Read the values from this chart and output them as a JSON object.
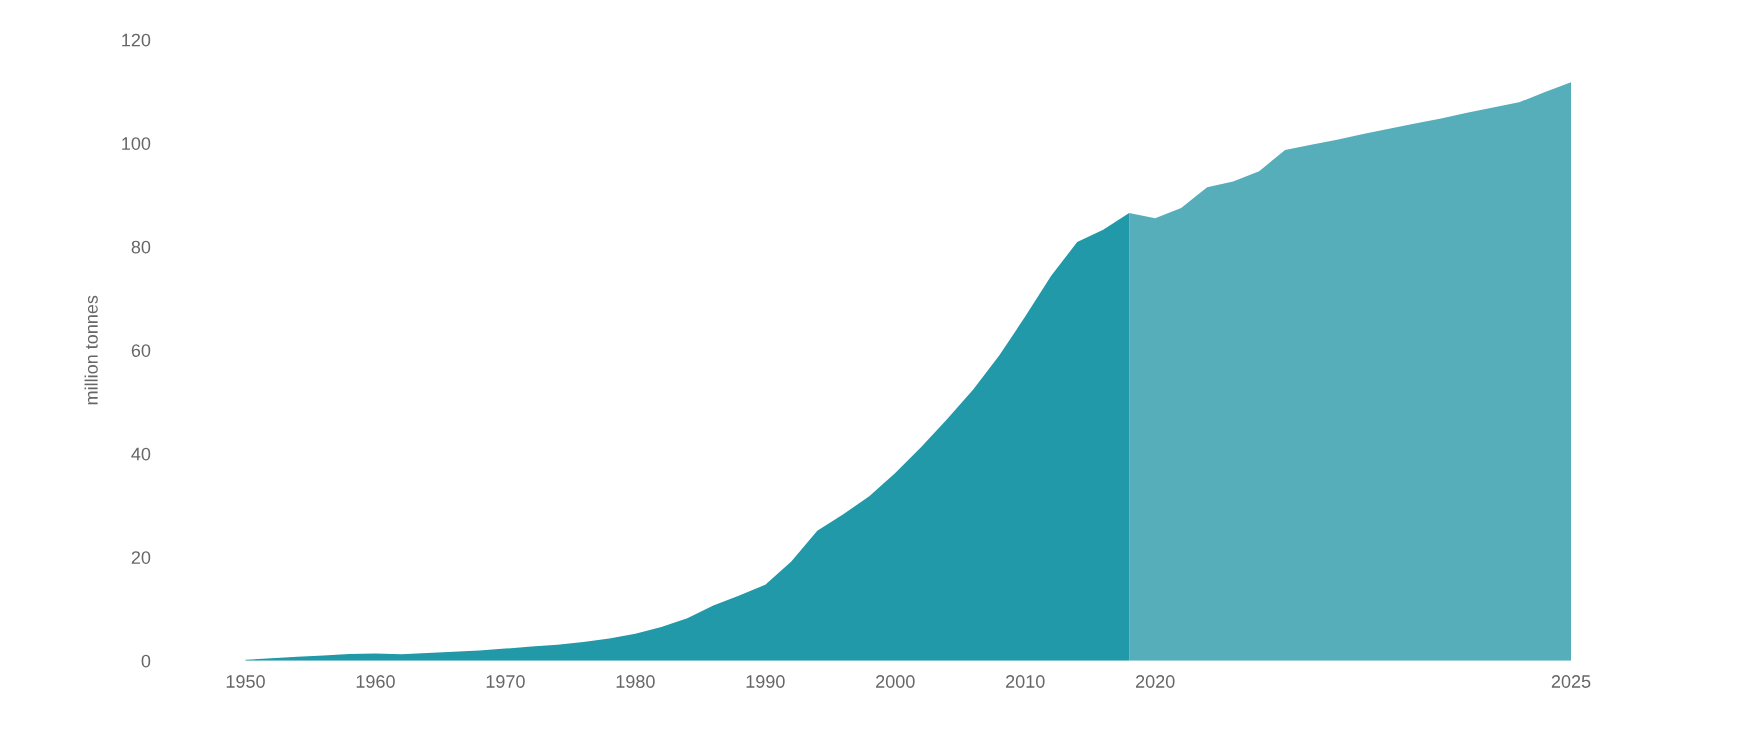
{
  "chart_data": {
    "type": "area",
    "ylabel": "million tonnes",
    "ylim": [
      0,
      120
    ],
    "yticks": [
      0,
      20,
      40,
      60,
      80,
      100,
      120
    ],
    "categories": [
      "1950",
      null,
      null,
      null,
      null,
      "1960",
      null,
      null,
      null,
      null,
      "1970",
      null,
      null,
      null,
      null,
      "1980",
      null,
      null,
      null,
      null,
      "1990",
      null,
      null,
      null,
      null,
      "2000",
      null,
      null,
      null,
      null,
      "2010",
      null,
      null,
      null,
      null,
      "2020",
      null,
      null,
      null,
      null,
      null,
      null,
      null,
      null,
      null,
      null,
      null,
      null,
      null,
      null,
      null,
      "2025"
    ],
    "series": [
      {
        "color": "#2199a8",
        "values": [
          0.2,
          0.47,
          0.75,
          1.0,
          1.3,
          1.4,
          1.25,
          1.5,
          1.75,
          2.0,
          2.35,
          2.75,
          3.1,
          3.6,
          4.3,
          5.2,
          6.5,
          8.2,
          10.7,
          12.6,
          14.7,
          19.2,
          25.1,
          28.3,
          31.8,
          36.3,
          41.3,
          46.7,
          52.4,
          59.0,
          66.5,
          74.4,
          80.9,
          83.3,
          86.5,
          null,
          null,
          null,
          null,
          null,
          null,
          null,
          null,
          null,
          null,
          null,
          null,
          null,
          null,
          null,
          null,
          null
        ]
      },
      {
        "color": "#55aeba",
        "values": [
          null,
          null,
          null,
          null,
          null,
          null,
          null,
          null,
          null,
          null,
          null,
          null,
          null,
          null,
          null,
          null,
          null,
          null,
          null,
          null,
          null,
          null,
          null,
          null,
          null,
          null,
          null,
          null,
          null,
          null,
          null,
          null,
          null,
          null,
          86.5,
          85.5,
          87.5,
          91.5,
          92.6,
          94.6,
          98.7,
          99.7,
          100.7,
          101.8,
          102.8,
          103.8,
          104.8,
          105.9,
          106.9,
          107.9,
          109.9,
          111.8
        ]
      }
    ]
  }
}
